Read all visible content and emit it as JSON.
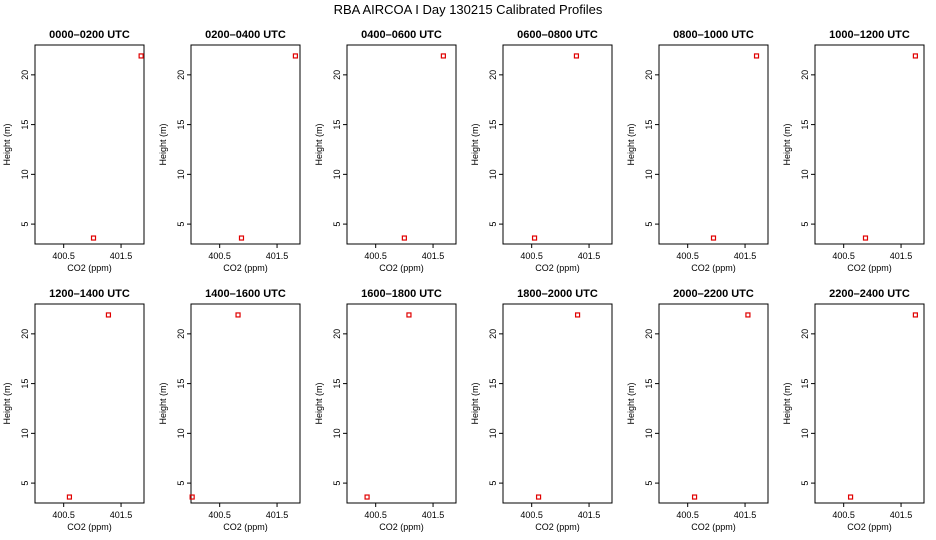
{
  "title": "RBA AIRCOA I  Day 130215  Calibrated Profiles",
  "chart_data": {
    "type": "scatter",
    "shared": {
      "xlabel": "CO2 (ppm)",
      "ylabel": "Height (m)",
      "xticks": [
        "400.5",
        "401.5"
      ],
      "xtick_values": [
        400.5,
        401.5
      ],
      "yticks": [
        5,
        10,
        15,
        20
      ],
      "ylim": [
        3,
        23
      ],
      "marker_color": "#e00000"
    },
    "panels": [
      {
        "title": "0000–0200 UTC",
        "xlim": [
          400.0,
          401.9
        ],
        "points": [
          {
            "x": 401.02,
            "y": 3.6
          },
          {
            "x": 401.85,
            "y": 21.9
          }
        ]
      },
      {
        "title": "0200–0400 UTC",
        "xlim": [
          400.0,
          401.9
        ],
        "points": [
          {
            "x": 400.88,
            "y": 3.6
          },
          {
            "x": 401.82,
            "y": 21.9
          }
        ]
      },
      {
        "title": "0400–0600 UTC",
        "xlim": [
          400.0,
          401.9
        ],
        "points": [
          {
            "x": 401.0,
            "y": 3.6
          },
          {
            "x": 401.68,
            "y": 21.9
          }
        ]
      },
      {
        "title": "0600–0800 UTC",
        "xlim": [
          400.0,
          401.9
        ],
        "points": [
          {
            "x": 400.55,
            "y": 3.6
          },
          {
            "x": 401.28,
            "y": 21.9
          }
        ]
      },
      {
        "title": "0800–1000 UTC",
        "xlim": [
          400.0,
          401.9
        ],
        "points": [
          {
            "x": 400.95,
            "y": 3.6
          },
          {
            "x": 401.7,
            "y": 21.9
          }
        ]
      },
      {
        "title": "1000–1200 UTC",
        "xlim": [
          400.0,
          401.9
        ],
        "points": [
          {
            "x": 400.88,
            "y": 3.6
          },
          {
            "x": 401.75,
            "y": 21.9
          }
        ]
      },
      {
        "title": "1200–1400 UTC",
        "xlim": [
          400.0,
          401.9
        ],
        "points": [
          {
            "x": 400.6,
            "y": 3.6
          },
          {
            "x": 401.28,
            "y": 21.9
          }
        ]
      },
      {
        "title": "1400–1600 UTC",
        "xlim": [
          400.0,
          401.9
        ],
        "points": [
          {
            "x": 400.02,
            "y": 3.6
          },
          {
            "x": 400.82,
            "y": 21.9
          }
        ]
      },
      {
        "title": "1600–1800 UTC",
        "xlim": [
          400.0,
          401.9
        ],
        "points": [
          {
            "x": 400.35,
            "y": 3.6
          },
          {
            "x": 401.08,
            "y": 21.9
          }
        ]
      },
      {
        "title": "1800–2000 UTC",
        "xlim": [
          400.0,
          401.9
        ],
        "points": [
          {
            "x": 400.62,
            "y": 3.6
          },
          {
            "x": 401.3,
            "y": 21.9
          }
        ]
      },
      {
        "title": "2000–2200 UTC",
        "xlim": [
          400.0,
          401.9
        ],
        "points": [
          {
            "x": 400.62,
            "y": 3.6
          },
          {
            "x": 401.55,
            "y": 21.9
          }
        ]
      },
      {
        "title": "2200–2400 UTC",
        "xlim": [
          400.0,
          401.9
        ],
        "points": [
          {
            "x": 400.62,
            "y": 3.6
          },
          {
            "x": 401.75,
            "y": 21.9
          }
        ]
      }
    ]
  }
}
